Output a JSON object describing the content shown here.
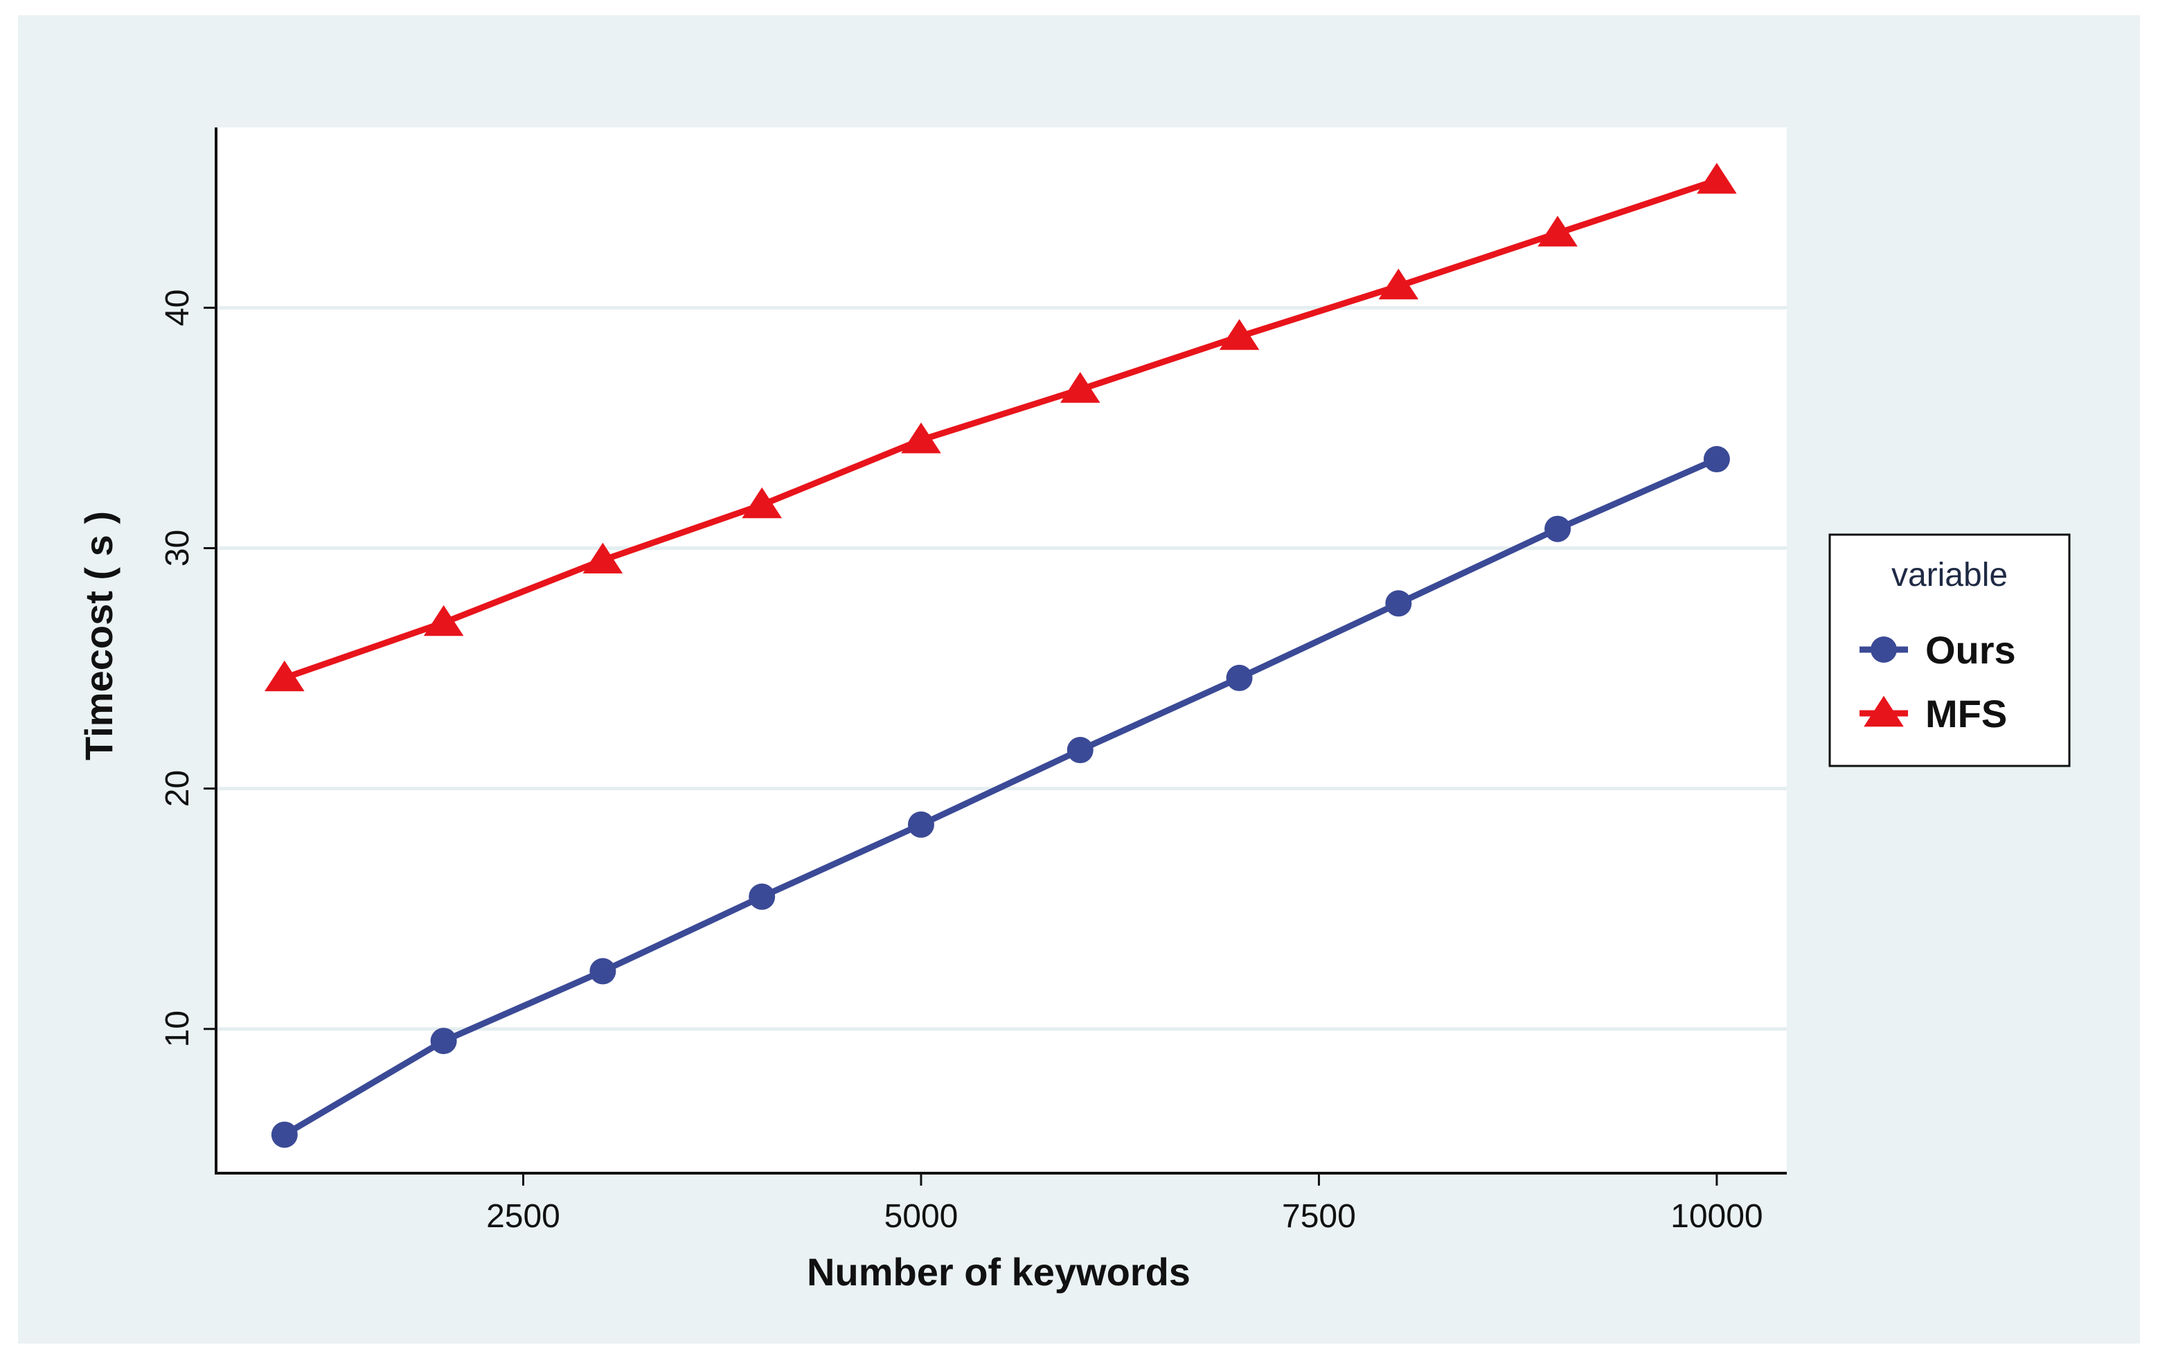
{
  "chart_data": {
    "type": "line",
    "x": [
      1000,
      2000,
      3000,
      4000,
      5000,
      6000,
      7000,
      8000,
      9000,
      10000
    ],
    "series": [
      {
        "name": "Ours",
        "marker": "circle",
        "color": "#3b4a96",
        "values": [
          5.6,
          9.5,
          12.4,
          15.5,
          18.5,
          21.6,
          24.6,
          27.7,
          30.8,
          33.7
        ]
      },
      {
        "name": "MFS",
        "marker": "triangle",
        "color": "#e8141b",
        "values": [
          24.6,
          26.9,
          29.5,
          31.8,
          34.5,
          36.6,
          38.8,
          40.9,
          43.1,
          45.3
        ]
      }
    ],
    "xlabel": "Number of keywords",
    "ylabel": "Timecost ( s )",
    "xticks": [
      2500,
      5000,
      7500,
      10000
    ],
    "yticks": [
      10,
      20,
      30,
      40
    ],
    "xlim": [
      570,
      10440
    ],
    "ylim": [
      4,
      47.5
    ],
    "grid": "horizontal",
    "legend": {
      "title": "variable",
      "position": "right"
    },
    "colors": {
      "outer_background": "#eaf2f3",
      "plot_background": "#ffffff",
      "gridline": "#e4eef0"
    }
  }
}
